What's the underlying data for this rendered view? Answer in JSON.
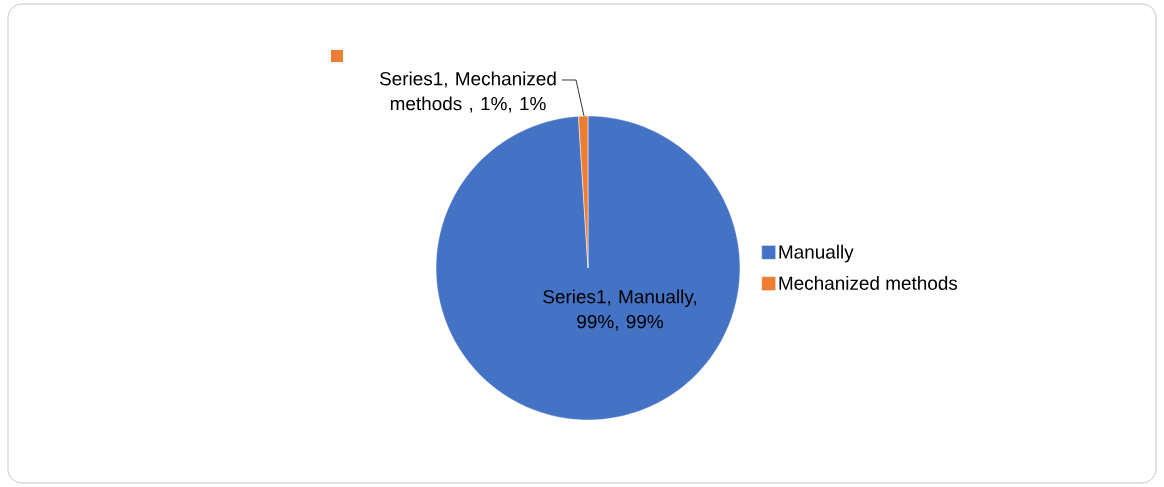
{
  "chart_data": {
    "type": "pie",
    "categories": [
      "Manually",
      "Mechanized methods"
    ],
    "values": [
      99,
      1
    ],
    "colors": [
      "#4472c4",
      "#ed7d31"
    ],
    "value_labels": [
      "Series1, Manually, 99%, 99%",
      "Series1, Mechanized methods , 1%, 1%"
    ],
    "legend": "right"
  }
}
